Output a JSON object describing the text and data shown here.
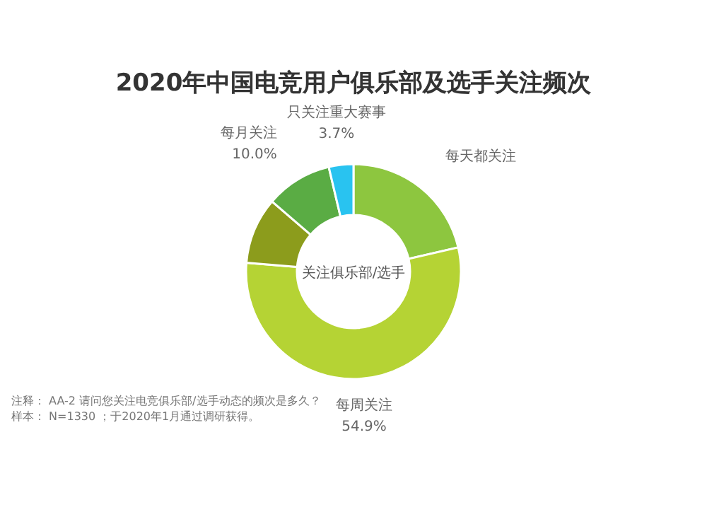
{
  "chart_data": {
    "type": "donut",
    "title": "2020年中国电竞用户俱乐部及选手关注频次",
    "categories": [
      "每天都关注",
      "每周关注",
      null,
      "每月关注",
      "只关注重大赛事"
    ],
    "values": [
      21.4,
      54.9,
      10.0,
      10.0,
      3.7
    ],
    "value_labels": [
      null,
      "54.9%",
      null,
      "10.0%",
      "3.7%"
    ],
    "colors": [
      "#8dc63f",
      "#b5d334",
      "#8c9c1c",
      "#5aac44",
      "#29c3f0"
    ],
    "annotations": [
      "关注俱乐部/选手",
      "注释：  AA-2 请问您关注电竞俱乐部/选手动态的频次是多久？",
      "样本：  N=1330 ；于2020年1月通过调研获得。"
    ]
  }
}
